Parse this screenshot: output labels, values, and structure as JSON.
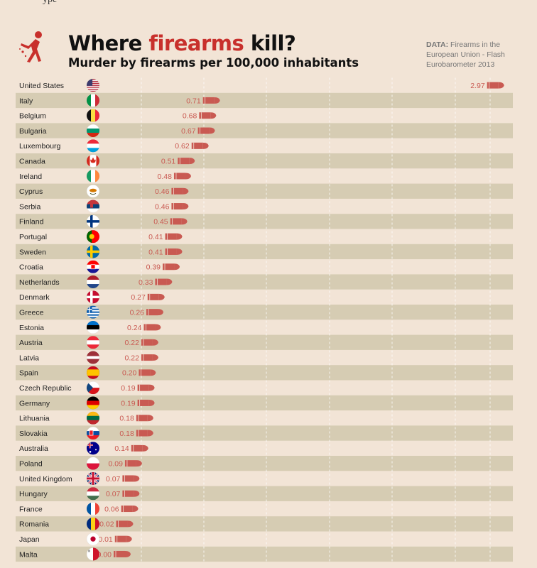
{
  "header": {
    "top_fragment": "ype",
    "title_part1": "Where ",
    "title_accent": "firearms",
    "title_part2": " kill?",
    "subtitle": "Murder by firearms per 100,000 inhabitants",
    "source_label": "DATA:",
    "source_text": "Firearms in the European Union - Flash Eurobarometer 2013"
  },
  "colors": {
    "background": "#f2e4d6",
    "stripe": "#d6ccb3",
    "accent": "#c8302c",
    "bullet": "#c95a52",
    "value_text": "#c95a52"
  },
  "chart_data": {
    "type": "bar",
    "categories": [
      "United States",
      "Italy",
      "Belgium",
      "Bulgaria",
      "Luxembourg",
      "Canada",
      "Ireland",
      "Cyprus",
      "Serbia",
      "Finland",
      "Portugal",
      "Sweden",
      "Croatia",
      "Netherlands",
      "Denmark",
      "Greece",
      "Estonia",
      "Austria",
      "Latvia",
      "Spain",
      "Czech Republic",
      "Germany",
      "Lithuania",
      "Slovakia",
      "Australia",
      "Poland",
      "United Kingdom",
      "Hungary",
      "France",
      "Romania",
      "Japan",
      "Malta"
    ],
    "values": [
      2.97,
      0.71,
      0.68,
      0.67,
      0.62,
      0.51,
      0.48,
      0.46,
      0.46,
      0.45,
      0.41,
      0.41,
      0.39,
      0.33,
      0.27,
      0.26,
      0.24,
      0.22,
      0.22,
      0.2,
      0.19,
      0.19,
      0.18,
      0.18,
      0.14,
      0.09,
      0.07,
      0.07,
      0.06,
      0.02,
      0.01,
      0.0
    ],
    "value_labels": [
      "2.97",
      "0.71",
      "0.68",
      "0.67",
      "0.62",
      "0.51",
      "0.48",
      "0.46",
      "0.46",
      "0.45",
      "0.41",
      "0.41",
      "0.39",
      "0.33",
      "0.27",
      "0.26",
      "0.24",
      "0.22",
      "0.22",
      "0.20",
      "0.19",
      "0.19",
      "0.18",
      "0.18",
      "0.14",
      "0.09",
      "0.07",
      "0.07",
      "0.06",
      "0.02",
      "0.01",
      "0.00"
    ],
    "flags": [
      "flag-united-states-icon",
      "flag-italy-icon",
      "flag-belgium-icon",
      "flag-bulgaria-icon",
      "flag-luxembourg-icon",
      "flag-canada-icon",
      "flag-ireland-icon",
      "flag-cyprus-icon",
      "flag-serbia-icon",
      "flag-finland-icon",
      "flag-portugal-icon",
      "flag-sweden-icon",
      "flag-croatia-icon",
      "flag-netherlands-icon",
      "flag-denmark-icon",
      "flag-greece-icon",
      "flag-estonia-icon",
      "flag-austria-icon",
      "flag-latvia-icon",
      "flag-spain-icon",
      "flag-czech-republic-icon",
      "flag-germany-icon",
      "flag-lithuania-icon",
      "flag-slovakia-icon",
      "flag-australia-icon",
      "flag-poland-icon",
      "flag-united-kingdom-icon",
      "flag-hungary-icon",
      "flag-france-icon",
      "flag-romania-icon",
      "flag-japan-icon",
      "flag-malta-icon"
    ],
    "xlim": [
      0,
      3
    ],
    "grid": true,
    "grid_style": "dashed vertical",
    "mark_style": "bullet icon at end of value",
    "legend": "none"
  }
}
